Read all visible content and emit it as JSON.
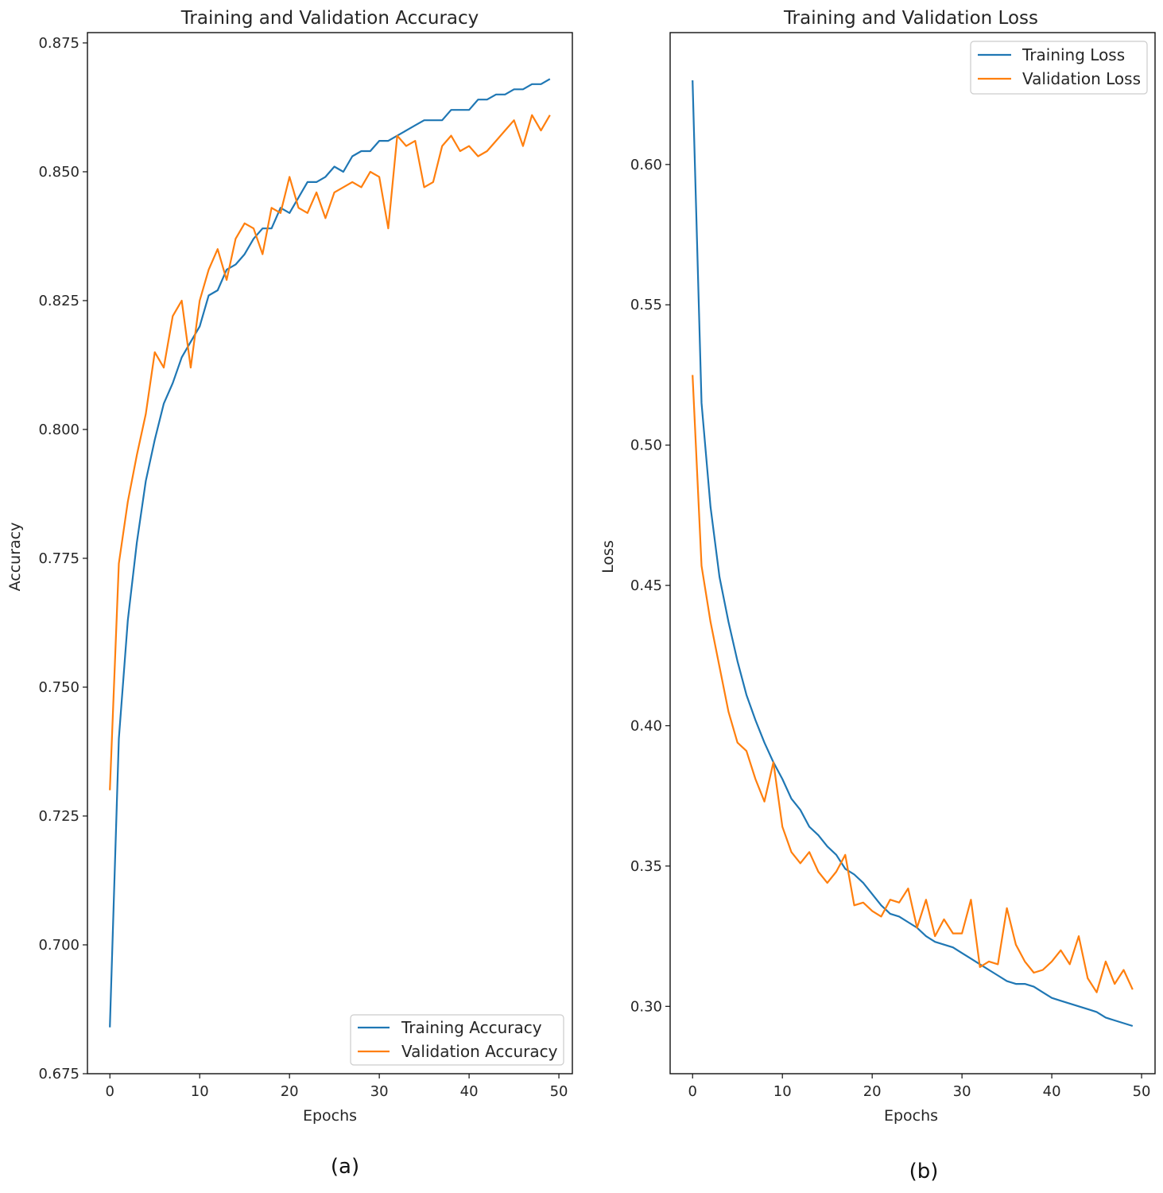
{
  "chart_data": [
    {
      "type": "line",
      "title": "Training and Validation Accuracy",
      "xlabel": "Epochs",
      "ylabel": "Accuracy",
      "caption": "(a)",
      "xlim": [
        -2.5,
        51.5
      ],
      "ylim": [
        0.675,
        0.877
      ],
      "xticks": [
        0,
        10,
        20,
        30,
        40,
        50
      ],
      "xtick_labels": [
        "0",
        "10",
        "20",
        "30",
        "40",
        "50"
      ],
      "yticks": [
        0.675,
        0.7,
        0.725,
        0.75,
        0.775,
        0.8,
        0.825,
        0.85,
        0.875
      ],
      "ytick_labels": [
        "0.675",
        "0.700",
        "0.725",
        "0.750",
        "0.775",
        "0.800",
        "0.825",
        "0.850",
        "0.875"
      ],
      "legend_position": "bottom-right",
      "x": [
        0,
        1,
        2,
        3,
        4,
        5,
        6,
        7,
        8,
        9,
        10,
        11,
        12,
        13,
        14,
        15,
        16,
        17,
        18,
        19,
        20,
        21,
        22,
        23,
        24,
        25,
        26,
        27,
        28,
        29,
        30,
        31,
        32,
        33,
        34,
        35,
        36,
        37,
        38,
        39,
        40,
        41,
        42,
        43,
        44,
        45,
        46,
        47,
        48,
        49
      ],
      "series": [
        {
          "name": "Training Accuracy",
          "color": "#1f77b4",
          "values": [
            0.684,
            0.74,
            0.763,
            0.778,
            0.79,
            0.798,
            0.805,
            0.809,
            0.814,
            0.817,
            0.82,
            0.826,
            0.827,
            0.831,
            0.832,
            0.834,
            0.837,
            0.839,
            0.839,
            0.843,
            0.842,
            0.845,
            0.848,
            0.848,
            0.849,
            0.851,
            0.85,
            0.853,
            0.854,
            0.854,
            0.856,
            0.856,
            0.857,
            0.858,
            0.859,
            0.86,
            0.86,
            0.86,
            0.862,
            0.862,
            0.862,
            0.864,
            0.864,
            0.865,
            0.865,
            0.866,
            0.866,
            0.867,
            0.867,
            0.868
          ]
        },
        {
          "name": "Validation Accuracy",
          "color": "#ff7f0e",
          "values": [
            0.73,
            0.774,
            0.786,
            0.795,
            0.803,
            0.815,
            0.812,
            0.822,
            0.825,
            0.812,
            0.825,
            0.831,
            0.835,
            0.829,
            0.837,
            0.84,
            0.839,
            0.834,
            0.843,
            0.842,
            0.849,
            0.843,
            0.842,
            0.846,
            0.841,
            0.846,
            0.847,
            0.848,
            0.847,
            0.85,
            0.849,
            0.839,
            0.857,
            0.855,
            0.856,
            0.847,
            0.848,
            0.855,
            0.857,
            0.854,
            0.855,
            0.853,
            0.854,
            0.856,
            0.858,
            0.86,
            0.855,
            0.861,
            0.858,
            0.861
          ]
        }
      ]
    },
    {
      "type": "line",
      "title": "Training and Validation Loss",
      "xlabel": "Epochs",
      "ylabel": "Loss",
      "caption": "(b)",
      "xlim": [
        -2.5,
        51.5
      ],
      "ylim": [
        0.276,
        0.647
      ],
      "xticks": [
        0,
        10,
        20,
        30,
        40,
        50
      ],
      "xtick_labels": [
        "0",
        "10",
        "20",
        "30",
        "40",
        "50"
      ],
      "yticks": [
        0.3,
        0.35,
        0.4,
        0.45,
        0.5,
        0.55,
        0.6
      ],
      "ytick_labels": [
        "0.30",
        "0.35",
        "0.40",
        "0.45",
        "0.50",
        "0.55",
        "0.60"
      ],
      "legend_position": "top-right",
      "x": [
        0,
        1,
        2,
        3,
        4,
        5,
        6,
        7,
        8,
        9,
        10,
        11,
        12,
        13,
        14,
        15,
        16,
        17,
        18,
        19,
        20,
        21,
        22,
        23,
        24,
        25,
        26,
        27,
        28,
        29,
        30,
        31,
        32,
        33,
        34,
        35,
        36,
        37,
        38,
        39,
        40,
        41,
        42,
        43,
        44,
        45,
        46,
        47,
        48,
        49
      ],
      "series": [
        {
          "name": "Training Loss",
          "color": "#1f77b4",
          "values": [
            0.63,
            0.515,
            0.478,
            0.453,
            0.437,
            0.423,
            0.411,
            0.402,
            0.394,
            0.387,
            0.381,
            0.374,
            0.37,
            0.364,
            0.361,
            0.357,
            0.354,
            0.349,
            0.347,
            0.344,
            0.34,
            0.336,
            0.333,
            0.332,
            0.33,
            0.328,
            0.325,
            0.323,
            0.322,
            0.321,
            0.319,
            0.317,
            0.315,
            0.313,
            0.311,
            0.309,
            0.308,
            0.308,
            0.307,
            0.305,
            0.303,
            0.302,
            0.301,
            0.3,
            0.299,
            0.298,
            0.296,
            0.295,
            0.294,
            0.293
          ]
        },
        {
          "name": "Validation Loss",
          "color": "#ff7f0e",
          "values": [
            0.525,
            0.457,
            0.437,
            0.421,
            0.405,
            0.394,
            0.391,
            0.381,
            0.373,
            0.387,
            0.364,
            0.355,
            0.351,
            0.355,
            0.348,
            0.344,
            0.348,
            0.354,
            0.336,
            0.337,
            0.334,
            0.332,
            0.338,
            0.337,
            0.342,
            0.328,
            0.338,
            0.325,
            0.331,
            0.326,
            0.326,
            0.338,
            0.314,
            0.316,
            0.315,
            0.335,
            0.322,
            0.316,
            0.312,
            0.313,
            0.316,
            0.32,
            0.315,
            0.325,
            0.31,
            0.305,
            0.316,
            0.308,
            0.313,
            0.306
          ]
        }
      ]
    }
  ]
}
